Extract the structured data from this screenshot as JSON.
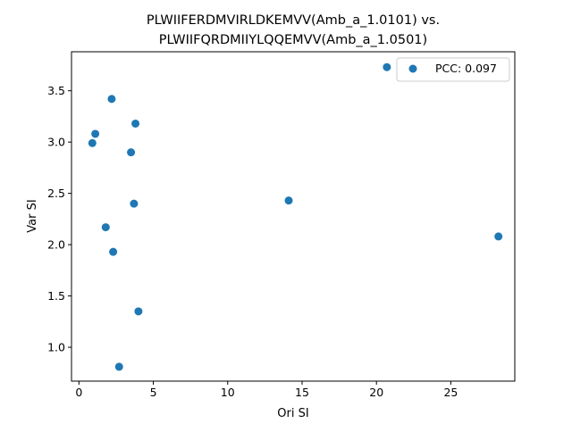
{
  "chart_data": {
    "type": "scatter",
    "title_line1": "PLWIIFERDMVIRLDKEMVV(Amb_a_1.0101) vs.",
    "title_line2": "PLWIIFQRDMIIYLQQEMVV(Amb_a_1.0501)",
    "xlabel": "Ori SI",
    "ylabel": "Var SI",
    "xlim": [
      -0.5,
      29.3
    ],
    "ylim": [
      0.67,
      3.88
    ],
    "xticks": [
      0,
      5,
      10,
      15,
      20,
      25
    ],
    "yticks": [
      1.0,
      1.5,
      2.0,
      2.5,
      3.0,
      3.5
    ],
    "ytick_labels": [
      "1.0",
      "1.5",
      "2.0",
      "2.5",
      "3.0",
      "3.5"
    ],
    "grid": false,
    "legend_position": "upper right",
    "series": [
      {
        "name": "PCC: 0.097",
        "color": "#1f77b4",
        "points": [
          {
            "x": 20.7,
            "y": 3.73
          },
          {
            "x": 2.2,
            "y": 3.42
          },
          {
            "x": 3.8,
            "y": 3.18
          },
          {
            "x": 1.1,
            "y": 3.08
          },
          {
            "x": 0.9,
            "y": 2.99
          },
          {
            "x": 3.5,
            "y": 2.9
          },
          {
            "x": 3.7,
            "y": 2.4
          },
          {
            "x": 14.1,
            "y": 2.43
          },
          {
            "x": 1.8,
            "y": 2.17
          },
          {
            "x": 28.2,
            "y": 2.08
          },
          {
            "x": 2.3,
            "y": 1.93
          },
          {
            "x": 4.0,
            "y": 1.35
          },
          {
            "x": 2.7,
            "y": 0.81
          }
        ]
      }
    ]
  }
}
